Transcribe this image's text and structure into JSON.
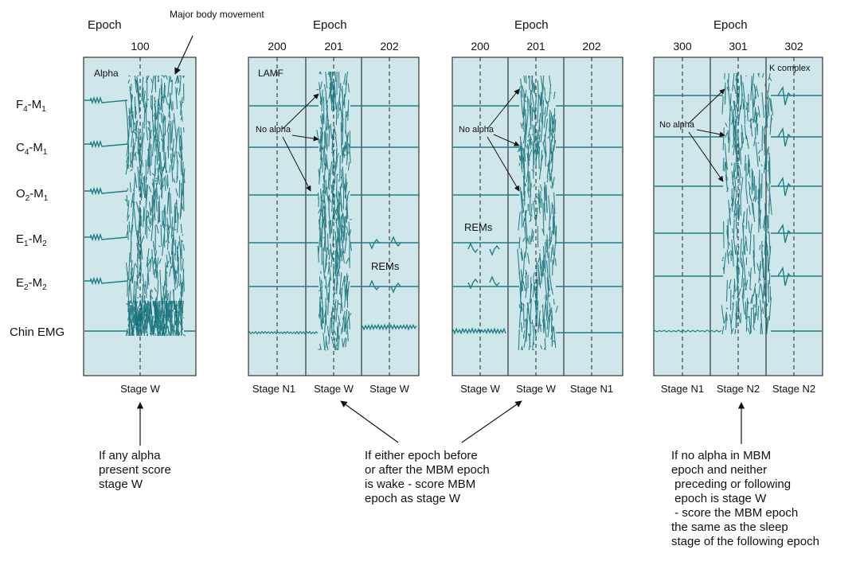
{
  "epoch_word": "Epoch",
  "channels": [
    {
      "main": "F",
      "sub1": "4",
      "mid": "-M",
      "sub2": "1"
    },
    {
      "main": "C",
      "sub1": "4",
      "mid": "-M",
      "sub2": "1"
    },
    {
      "main": "O",
      "sub1": "2",
      "mid": "-M",
      "sub2": "1"
    },
    {
      "main": "E",
      "sub1": "1",
      "mid": "-M",
      "sub2": "2"
    },
    {
      "main": "E",
      "sub1": "2",
      "mid": "-M",
      "sub2": "2"
    }
  ],
  "chin_label": "Chin EMG",
  "panel1": {
    "epoch_number": "100",
    "major_movement": "Major body\nmovement",
    "alpha": "Alpha",
    "stage": "Stage W",
    "note": "If any alpha\npresent score\nstage W"
  },
  "panel2": {
    "epoch_numbers": [
      "200",
      "201",
      "202"
    ],
    "lamf": "LAMF",
    "no_alpha": "No alpha",
    "rems": "REMs",
    "stages": [
      "Stage N1",
      "Stage W",
      "Stage W"
    ]
  },
  "panel3": {
    "epoch_numbers": [
      "200",
      "201",
      "202"
    ],
    "no_alpha": "No alpha",
    "rems": "REMs",
    "stages": [
      "Stage W",
      "Stage W",
      "Stage N1"
    ]
  },
  "panel23_note": "If either epoch before\nor after the MBM epoch\nis wake - score MBM\nepoch as stage W",
  "panel4": {
    "epoch_numbers": [
      "300",
      "301",
      "302"
    ],
    "k_complex": "K complex",
    "no_alpha": "No alpha",
    "stages": [
      "Stage N1",
      "Stage N2",
      "Stage N2"
    ],
    "note": "If no alpha in MBM\nepoch and neither\n preceding or following\n epoch is stage W\n - score the MBM epoch\nthe same as the sleep\nstage of the following epoch"
  },
  "colors": {
    "panel_bg": "#cfe6ea",
    "trace": "#1c7f87",
    "dense": "#0f6f77"
  }
}
